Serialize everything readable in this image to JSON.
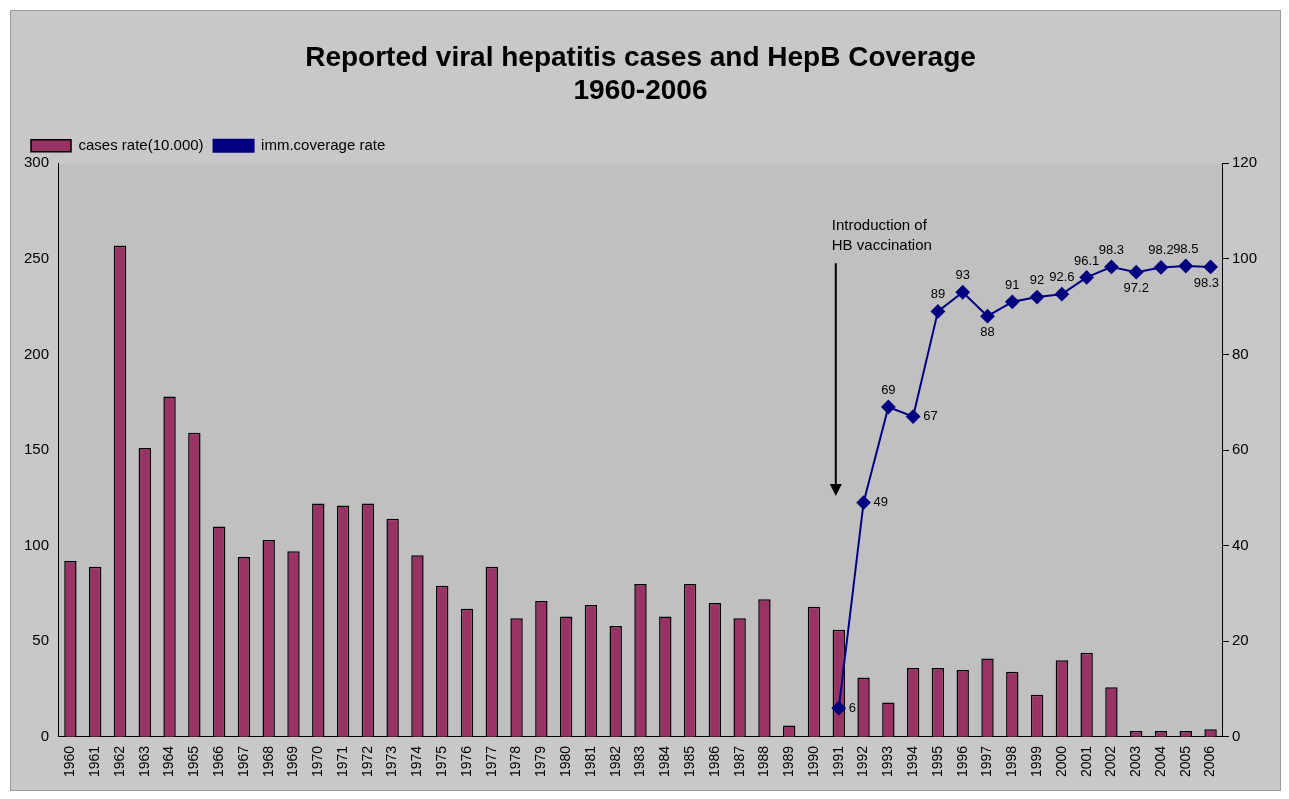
{
  "chart_data": {
    "type": "bar",
    "title": "Reported viral hepatitis cases and HepB Coverage\n1960-2006",
    "categories": [
      "1960",
      "1961",
      "1962",
      "1963",
      "1964",
      "1965",
      "1966",
      "1967",
      "1968",
      "1969",
      "1970",
      "1971",
      "1972",
      "1973",
      "1974",
      "1975",
      "1976",
      "1977",
      "1978",
      "1979",
      "1980",
      "1981",
      "1982",
      "1983",
      "1984",
      "1985",
      "1986",
      "1987",
      "1988",
      "1989",
      "1990",
      "1991",
      "1992",
      "1993",
      "1994",
      "1995",
      "1996",
      "1997",
      "1998",
      "1999",
      "2000",
      "2001",
      "2002",
      "2003",
      "2004",
      "2005",
      "2006"
    ],
    "series": [
      {
        "name": "cases rate(10.000)",
        "color": "#993366",
        "values": [
          92,
          89,
          257,
          151,
          178,
          159,
          110,
          94,
          103,
          97,
          122,
          121,
          122,
          114,
          95,
          79,
          67,
          89,
          62,
          71,
          63,
          69,
          58,
          80,
          63,
          80,
          70,
          62,
          72,
          6,
          68,
          56,
          31,
          18,
          36,
          36,
          35,
          41,
          34,
          22,
          40,
          44,
          26,
          3,
          3,
          3,
          4
        ]
      },
      {
        "name": "imm.coverage rate",
        "type": "line",
        "axis": "y2",
        "color": "#000080",
        "data_labels": true,
        "values": [
          null,
          null,
          null,
          null,
          null,
          null,
          null,
          null,
          null,
          null,
          null,
          null,
          null,
          null,
          null,
          null,
          null,
          null,
          null,
          null,
          null,
          null,
          null,
          null,
          null,
          null,
          null,
          null,
          null,
          null,
          null,
          6,
          49,
          69,
          67,
          89,
          93,
          88,
          91,
          92,
          92.6,
          96.1,
          98.3,
          97.2,
          98.2,
          98.5,
          98.3
        ]
      }
    ],
    "ylim": [
      0,
      300
    ],
    "yticks": [
      0,
      50,
      100,
      150,
      200,
      250,
      300
    ],
    "y2lim": [
      0,
      120
    ],
    "y2ticks": [
      0,
      20,
      40,
      60,
      80,
      100,
      120
    ],
    "grid": false,
    "legend": "top left",
    "marker": "diamond",
    "line_style": "solid",
    "annotations": [
      "Introduction of\nHB vaccination"
    ]
  }
}
